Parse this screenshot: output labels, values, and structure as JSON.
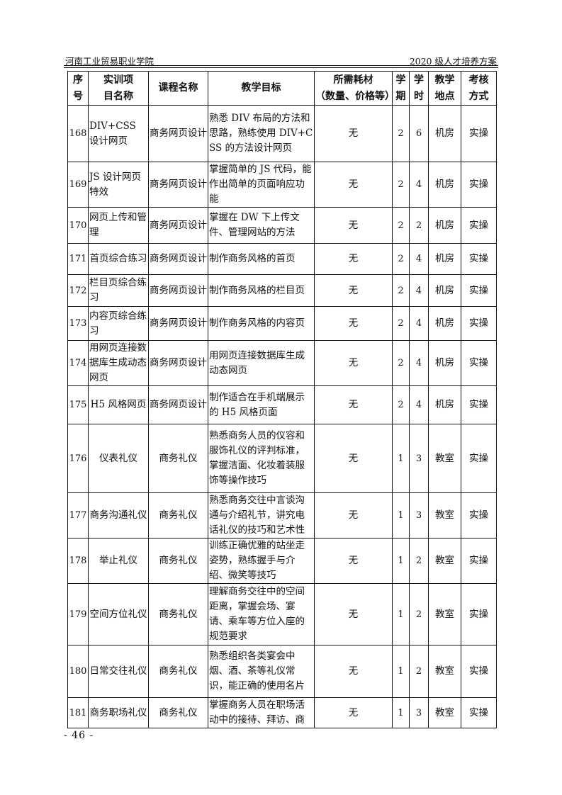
{
  "header": {
    "left": "河南工业贸易职业学院",
    "right": "2020 级人才培养方案"
  },
  "table": {
    "columns": [
      "序号",
      "实训项目名称",
      "课程名称",
      "教学目标",
      "所需耗材（数量、价格等）",
      "学期",
      "学时",
      "教学地点",
      "考核方式"
    ],
    "column_display": [
      "序<br>号",
      "实训项<br>目名称",
      "课程名称",
      "教学目标",
      "所需耗材<br>（数量、价格等）",
      "学<br>期",
      "学<br>时",
      "教学<br>地点",
      "考核<br>方式"
    ],
    "rows": [
      {
        "no": "168",
        "project": "DIV+CSS 设计网页",
        "course": "商务网页设计",
        "goal": "熟悉 DIV 布局的方法和思路，熟练使用 DIV+CSS 的方法设计网页",
        "materials": "无",
        "term": "2",
        "hours": "6",
        "place": "机房",
        "assess": "实操"
      },
      {
        "no": "169",
        "project": "JS 设计网页特效",
        "course": "商务网页设计",
        "goal": "掌握简单的 JS 代码，能作出简单的页面响应功能",
        "materials": "无",
        "term": "2",
        "hours": "4",
        "place": "机房",
        "assess": "实操"
      },
      {
        "no": "170",
        "project": "网页上传和管理",
        "course": "商务网页设计",
        "goal": "掌握在 DW 下上传文件、管理网站的方法",
        "materials": "无",
        "term": "2",
        "hours": "2",
        "place": "机房",
        "assess": "实操"
      },
      {
        "no": "171",
        "project": "首页综合练习",
        "course": "商务网页设计",
        "goal": "制作商务风格的首页",
        "materials": "无",
        "term": "2",
        "hours": "4",
        "place": "机房",
        "assess": "实操"
      },
      {
        "no": "172",
        "project": "栏目页综合练习",
        "course": "商务网页设计",
        "goal": "制作商务风格的栏目页",
        "materials": "无",
        "term": "2",
        "hours": "4",
        "place": "机房",
        "assess": "实操"
      },
      {
        "no": "173",
        "project": "内容页综合练习",
        "course": "商务网页设计",
        "goal": "制作商务风格的内容页",
        "materials": "无",
        "term": "2",
        "hours": "4",
        "place": "机房",
        "assess": "实操"
      },
      {
        "no": "174",
        "project": "用网页连接数据库生成动态网页",
        "course": "商务网页设计",
        "goal": "用网页连接数据库生成动态网页",
        "materials": "无",
        "term": "2",
        "hours": "4",
        "place": "机房",
        "assess": "实操"
      },
      {
        "no": "175",
        "project": "H5 风格网页",
        "course": "商务网页设计",
        "goal": "制作适合在手机端展示的 H5 风格页面",
        "materials": "无",
        "term": "2",
        "hours": "4",
        "place": "机房",
        "assess": "实操"
      },
      {
        "no": "176",
        "project": "仪表礼仪",
        "course": "商务礼仪",
        "goal": "熟悉商务人员的仪容和服饰礼仪的评判标准，掌握洁面、化妆着装服饰等操作技巧",
        "materials": "无",
        "term": "1",
        "hours": "3",
        "place": "教室",
        "assess": "实操"
      },
      {
        "no": "177",
        "project": "商务沟通礼仪",
        "course": "商务礼仪",
        "goal": "熟悉商务交往中言谈沟通与介绍礼节，讲究电话礼仪的技巧和艺术性",
        "materials": "无",
        "term": "1",
        "hours": "3",
        "place": "教室",
        "assess": "实操"
      },
      {
        "no": "178",
        "project": "举止礼仪",
        "course": "商务礼仪",
        "goal": "训练正确优雅的站坐走姿势，熟练握手与介绍、微笑等技巧",
        "materials": "无",
        "term": "1",
        "hours": "2",
        "place": "教室",
        "assess": "实操"
      },
      {
        "no": "179",
        "project": "空间方位礼仪",
        "course": "商务礼仪",
        "goal": "理解商务交往中的空间距离，掌握会场、宴请、乘车等方位入座的规范要求",
        "materials": "无",
        "term": "1",
        "hours": "2",
        "place": "教室",
        "assess": "实操"
      },
      {
        "no": "180",
        "project": "日常交往礼仪",
        "course": "商务礼仪",
        "goal": "熟悉组织各类宴会中烟、酒、茶等礼仪常识，能正确的使用名片",
        "materials": "无",
        "term": "1",
        "hours": "2",
        "place": "教室",
        "assess": "实操"
      },
      {
        "no": "181",
        "project": "商务职场礼仪",
        "course": "商务礼仪",
        "goal": "掌握商务人员在职场活动中的接待、拜访、商",
        "materials": "无",
        "term": "1",
        "hours": "3",
        "place": "教室",
        "assess": "实操"
      }
    ]
  },
  "footer": {
    "page": "- 46 -"
  }
}
